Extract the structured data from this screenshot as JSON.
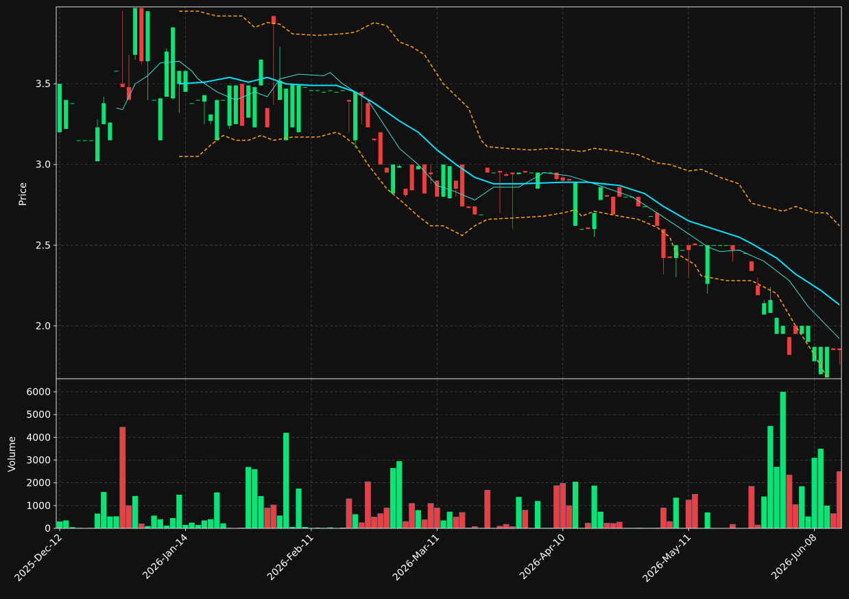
{
  "chart_data": [
    {
      "type": "candlestick",
      "ylabel": "Price",
      "xlim": [
        -0.55,
        124.3
      ],
      "ylim": [
        1.672,
        3.977
      ],
      "yticks": [
        {
          "value": 2,
          "label": "2.0"
        },
        2.5,
        {
          "value": 3,
          "label": "3.0"
        },
        3.5
      ],
      "grid": true,
      "up_color": "#00e676",
      "down_color": "#f23d3d",
      "candles": [
        [
          3.2,
          3.5,
          3.2,
          3.5
        ],
        [
          3.22,
          3.4,
          3.22,
          3.4
        ],
        [
          3.38,
          3.38,
          3.38,
          3.38
        ],
        [
          3.15,
          3.15,
          3.15,
          3.15
        ],
        [
          3.15,
          3.15,
          3.15,
          3.15
        ],
        [
          3.15,
          3.15,
          3.15,
          3.15
        ],
        [
          3.02,
          3.28,
          3.02,
          3.23
        ],
        [
          3.25,
          3.42,
          3.25,
          3.38
        ],
        [
          3.15,
          3.26,
          3.15,
          3.26
        ],
        [
          3.58,
          3.58,
          3.58,
          3.58
        ],
        [
          3.5,
          3.95,
          3.48,
          3.48
        ],
        [
          3.48,
          3.68,
          3.4,
          3.4
        ],
        [
          3.68,
          3.97,
          3.65,
          3.97
        ],
        [
          3.97,
          3.97,
          3.62,
          3.64
        ],
        [
          3.64,
          3.95,
          3.4,
          3.95
        ],
        [
          3.4,
          3.4,
          3.4,
          3.4
        ],
        [
          3.15,
          3.41,
          3.15,
          3.41
        ],
        [
          3.42,
          3.72,
          3.42,
          3.7
        ],
        [
          3.41,
          3.85,
          3.4,
          3.85
        ],
        [
          3.5,
          3.58,
          3.32,
          3.58
        ],
        [
          3.45,
          3.58,
          3.45,
          3.58
        ],
        [
          3.38,
          3.38,
          3.38,
          3.38
        ],
        [
          3.4,
          3.4,
          3.4,
          3.4
        ],
        [
          3.39,
          3.43,
          3.25,
          3.43
        ],
        [
          3.27,
          3.31,
          3.25,
          3.31
        ],
        [
          3.15,
          3.4,
          3.15,
          3.4
        ],
        [
          3.4,
          3.4,
          3.4,
          3.4
        ],
        [
          3.24,
          3.49,
          3.22,
          3.49
        ],
        [
          3.25,
          3.49,
          3.25,
          3.49
        ],
        [
          3.5,
          3.5,
          3.24,
          3.24
        ],
        [
          3.29,
          3.49,
          3.29,
          3.49
        ],
        [
          3.23,
          3.48,
          3.23,
          3.48
        ],
        [
          3.49,
          3.65,
          3.49,
          3.65
        ],
        [
          3.35,
          3.35,
          3.23,
          3.23
        ],
        [
          3.92,
          3.92,
          3.37,
          3.87
        ],
        [
          3.4,
          3.73,
          3.4,
          3.52
        ],
        [
          3.15,
          3.47,
          3.15,
          3.47
        ],
        [
          3.23,
          3.5,
          3.23,
          3.5
        ],
        [
          3.2,
          3.49,
          3.2,
          3.49
        ],
        [
          3.48,
          3.48,
          3.48,
          3.48
        ],
        [
          3.46,
          3.46,
          3.46,
          3.46
        ],
        [
          3.46,
          3.46,
          3.46,
          3.46
        ],
        [
          3.45,
          3.45,
          3.45,
          3.45
        ],
        [
          3.46,
          3.46,
          3.46,
          3.46
        ],
        [
          3.45,
          3.45,
          3.45,
          3.45
        ],
        [
          3.46,
          3.46,
          3.46,
          3.46
        ],
        [
          3.4,
          3.4,
          3.2,
          3.39
        ],
        [
          3.15,
          3.45,
          3.1,
          3.45
        ],
        [
          3.45,
          3.45,
          3.25,
          3.43
        ],
        [
          3.38,
          3.4,
          3.23,
          3.23
        ],
        [
          3.16,
          3.16,
          3.15,
          3.15
        ],
        [
          3.2,
          3.2,
          3.0,
          3.0
        ],
        [
          2.98,
          2.98,
          2.95,
          2.95
        ],
        [
          2.82,
          3.0,
          2.82,
          3.0
        ],
        [
          2.98,
          3.0,
          2.98,
          2.99
        ],
        [
          2.85,
          2.85,
          2.8,
          2.81
        ],
        [
          3.0,
          3.0,
          2.84,
          2.84
        ],
        [
          2.97,
          3.0,
          2.97,
          2.99
        ],
        [
          3.0,
          3.0,
          2.82,
          2.82
        ],
        [
          2.95,
          3.0,
          2.88,
          2.94
        ],
        [
          2.9,
          2.9,
          2.8,
          2.8
        ],
        [
          2.8,
          3.0,
          2.8,
          3.0
        ],
        [
          2.79,
          2.99,
          2.79,
          2.99
        ],
        [
          2.9,
          2.9,
          2.8,
          2.85
        ],
        [
          3.0,
          3.0,
          2.74,
          2.74
        ],
        [
          2.74,
          2.74,
          2.74,
          2.73
        ],
        [
          2.74,
          2.74,
          2.69,
          2.69
        ],
        [
          2.69,
          2.69,
          2.69,
          2.69
        ],
        [
          2.98,
          2.98,
          2.95,
          2.95
        ],
        [
          2.95,
          2.95,
          2.95,
          2.95
        ],
        [
          2.96,
          2.96,
          2.7,
          2.95
        ],
        [
          2.94,
          2.95,
          2.93,
          2.93
        ],
        [
          2.95,
          2.95,
          2.6,
          2.94
        ],
        [
          2.94,
          2.95,
          2.94,
          2.95
        ],
        [
          2.96,
          2.96,
          2.95,
          2.95
        ],
        [
          2.95,
          2.95,
          2.95,
          2.95
        ],
        [
          2.85,
          2.95,
          2.85,
          2.95
        ],
        [
          2.95,
          2.95,
          2.95,
          2.95
        ],
        [
          2.95,
          2.95,
          2.95,
          2.95
        ],
        [
          2.95,
          2.95,
          2.9,
          2.91
        ],
        [
          2.92,
          2.92,
          2.9,
          2.9
        ],
        [
          2.91,
          2.91,
          2.9,
          2.9
        ],
        [
          2.62,
          2.89,
          2.62,
          2.89
        ],
        [
          2.6,
          2.6,
          2.6,
          2.6
        ],
        [
          2.61,
          2.61,
          2.6,
          2.6
        ],
        [
          2.6,
          2.7,
          2.55,
          2.7
        ],
        [
          2.78,
          2.86,
          2.78,
          2.86
        ],
        [
          2.81,
          2.81,
          2.8,
          2.8
        ],
        [
          2.8,
          2.8,
          2.69,
          2.69
        ],
        [
          2.86,
          2.86,
          2.8,
          2.8
        ],
        [
          2.8,
          2.8,
          2.8,
          2.8
        ],
        [
          2.8,
          2.8,
          2.8,
          2.8
        ],
        [
          2.8,
          2.8,
          2.74,
          2.74
        ],
        [
          2.74,
          2.74,
          2.74,
          2.74
        ],
        [
          2.68,
          2.68,
          2.68,
          2.68
        ],
        [
          2.7,
          2.7,
          2.62,
          2.62
        ],
        [
          2.6,
          2.6,
          2.32,
          2.42
        ],
        [
          2.43,
          2.43,
          2.42,
          2.42
        ],
        [
          2.42,
          2.5,
          2.3,
          2.5
        ],
        [
          2.47,
          2.47,
          2.47,
          2.47
        ],
        [
          2.5,
          2.5,
          2.3,
          2.47
        ],
        [
          2.51,
          2.51,
          2.5,
          2.5
        ],
        [
          2.5,
          2.5,
          2.5,
          2.5
        ],
        [
          2.26,
          2.5,
          2.2,
          2.5
        ],
        [
          2.5,
          2.5,
          2.5,
          2.5
        ],
        [
          2.5,
          2.5,
          2.5,
          2.5
        ],
        [
          2.5,
          2.5,
          2.5,
          2.5
        ],
        [
          2.5,
          2.5,
          2.4,
          2.47
        ],
        [
          2.47,
          2.47,
          2.47,
          2.47
        ],
        [
          2.45,
          2.45,
          2.45,
          2.45
        ],
        [
          2.4,
          2.4,
          2.34,
          2.34
        ],
        [
          2.25,
          2.3,
          2.19,
          2.19
        ],
        [
          2.07,
          2.16,
          2.07,
          2.14
        ],
        [
          2.08,
          2.24,
          2.08,
          2.16
        ],
        [
          1.95,
          2.05,
          1.95,
          2.05
        ],
        [
          1.95,
          2.0,
          1.95,
          2.0
        ],
        [
          1.93,
          1.93,
          1.82,
          1.82
        ],
        [
          2.0,
          2.0,
          1.95,
          1.95
        ],
        [
          1.95,
          2.0,
          1.95,
          2.0
        ],
        [
          1.9,
          2.0,
          1.9,
          2.0
        ],
        [
          1.78,
          1.87,
          1.78,
          1.87
        ],
        [
          1.7,
          1.87,
          1.7,
          1.87
        ],
        [
          1.68,
          1.87,
          1.68,
          1.87
        ],
        [
          1.86,
          1.86,
          1.86,
          1.85
        ],
        [
          1.86,
          1.86,
          1.76,
          1.85
        ]
      ],
      "overlays": [
        {
          "color": "#ffa500",
          "width": 1.5,
          "dashed": true,
          "x": [
            19,
            22,
            25,
            29,
            31,
            33,
            35,
            37,
            41,
            45,
            47,
            50,
            52,
            54,
            56,
            58,
            61,
            65,
            67,
            68,
            71,
            75,
            78,
            81,
            83,
            85,
            89,
            92,
            95,
            97,
            100,
            102,
            105,
            108,
            110,
            115,
            117,
            120,
            122,
            124
          ],
          "values": [
            3.95,
            3.95,
            3.92,
            3.92,
            3.85,
            3.88,
            3.87,
            3.81,
            3.8,
            3.81,
            3.82,
            3.88,
            3.86,
            3.76,
            3.73,
            3.68,
            3.5,
            3.35,
            3.15,
            3.11,
            3.1,
            3.09,
            3.1,
            3.09,
            3.08,
            3.1,
            3.08,
            3.06,
            3.01,
            3.0,
            2.96,
            2.97,
            2.92,
            2.88,
            2.76,
            2.71,
            2.74,
            2.7,
            2.7,
            2.62
          ]
        },
        {
          "color": "#ffa500",
          "width": 1.5,
          "dashed": true,
          "x": [
            19,
            22,
            24,
            26,
            28,
            30,
            32,
            34,
            37,
            41,
            44,
            45,
            47,
            49,
            52,
            55,
            57,
            59,
            61,
            64,
            66,
            68,
            73,
            77,
            80,
            82,
            83,
            85,
            89,
            92,
            95,
            97,
            98,
            101,
            102,
            106,
            110,
            114,
            117,
            120,
            122
          ],
          "values": [
            3.05,
            3.05,
            3.12,
            3.18,
            3.15,
            3.15,
            3.18,
            3.15,
            3.17,
            3.17,
            3.2,
            3.18,
            3.12,
            3.0,
            2.85,
            2.75,
            2.68,
            2.62,
            2.62,
            2.56,
            2.62,
            2.66,
            2.67,
            2.68,
            2.7,
            2.72,
            2.68,
            2.71,
            2.68,
            2.66,
            2.61,
            2.55,
            2.45,
            2.38,
            2.31,
            2.28,
            2.28,
            2.2,
            2.0,
            1.82,
            1.68
          ]
        },
        {
          "color": "#40e0d0",
          "width": 1,
          "dashed": false,
          "x": [
            9,
            10,
            12,
            14,
            16,
            19,
            21,
            22,
            25,
            28,
            31,
            33,
            35,
            38,
            42,
            43,
            45,
            49,
            54,
            57,
            60,
            63,
            66,
            69,
            73,
            77,
            81,
            85,
            91,
            95,
            100,
            103,
            105,
            108,
            112,
            116,
            119,
            124
          ],
          "values": [
            3.35,
            3.34,
            3.5,
            3.55,
            3.63,
            3.64,
            3.58,
            3.53,
            3.45,
            3.4,
            3.45,
            3.42,
            3.53,
            3.56,
            3.55,
            3.57,
            3.5,
            3.4,
            3.1,
            3.0,
            2.87,
            2.83,
            2.78,
            2.86,
            2.86,
            2.95,
            2.93,
            2.88,
            2.8,
            2.7,
            2.57,
            2.49,
            2.46,
            2.47,
            2.4,
            2.28,
            2.12,
            1.92
          ]
        },
        {
          "color": "#00e5ff",
          "width": 2,
          "dashed": false,
          "x": [
            19,
            23,
            27,
            30,
            33,
            36,
            40,
            44,
            47,
            50,
            54,
            57,
            60,
            63,
            66,
            69,
            73,
            80,
            84,
            89,
            93,
            96,
            100,
            104,
            108,
            110,
            114,
            117,
            121,
            124
          ],
          "values": [
            3.5,
            3.51,
            3.54,
            3.51,
            3.54,
            3.5,
            3.49,
            3.49,
            3.45,
            3.38,
            3.27,
            3.2,
            3.09,
            3.0,
            2.92,
            2.88,
            2.88,
            2.89,
            2.89,
            2.87,
            2.82,
            2.74,
            2.65,
            2.6,
            2.55,
            2.51,
            2.42,
            2.32,
            2.22,
            2.13
          ]
        }
      ]
    },
    {
      "type": "bar",
      "ylabel": "Volume",
      "xlim": [
        -0.55,
        124.3
      ],
      "ylim": [
        0,
        6575
      ],
      "yticks": [
        0,
        1000,
        2000,
        3000,
        4000,
        5000,
        6000
      ],
      "grid": true,
      "xticks": [
        {
          "value": 0,
          "label": "2025-Dec-12"
        },
        {
          "value": 20,
          "label": "2026-Jan-14"
        },
        {
          "value": 40,
          "label": "2026-Feb-11"
        },
        {
          "value": 60,
          "label": "2026-Mar-11"
        },
        {
          "value": 80,
          "label": "2026-Apr-10"
        },
        {
          "value": 100,
          "label": "2026-May-11"
        },
        {
          "value": 120,
          "label": "2026-Jun-08"
        }
      ],
      "values": [
        300,
        350,
        50,
        20,
        10,
        20,
        650,
        1600,
        520,
        530,
        4450,
        1000,
        1420,
        200,
        100,
        560,
        400,
        120,
        450,
        1480,
        150,
        250,
        150,
        350,
        400,
        1580,
        220,
        20,
        10,
        20,
        2700,
        2600,
        1420,
        900,
        1030,
        560,
        4200,
        60,
        1750,
        60,
        20,
        30,
        20,
        40,
        10,
        30,
        1300,
        620,
        250,
        2050,
        500,
        650,
        900,
        2650,
        2950,
        300,
        1100,
        800,
        380,
        1100,
        900,
        350,
        730,
        500,
        700,
        20,
        80,
        20,
        1680,
        20,
        100,
        180,
        80,
        1380,
        800,
        20,
        1200,
        20,
        20,
        1880,
        1980,
        1000,
        2050,
        20,
        230,
        1880,
        730,
        230,
        220,
        280,
        20,
        20,
        20,
        20,
        20,
        20,
        900,
        300,
        1350,
        20,
        1250,
        1500,
        20,
        700,
        10,
        10,
        10,
        180,
        10,
        10,
        1850,
        150,
        1400,
        4500,
        2700,
        6000,
        2350,
        1050,
        1850,
        520,
        3100,
        3500,
        1000,
        650,
        2500
      ]
    }
  ]
}
